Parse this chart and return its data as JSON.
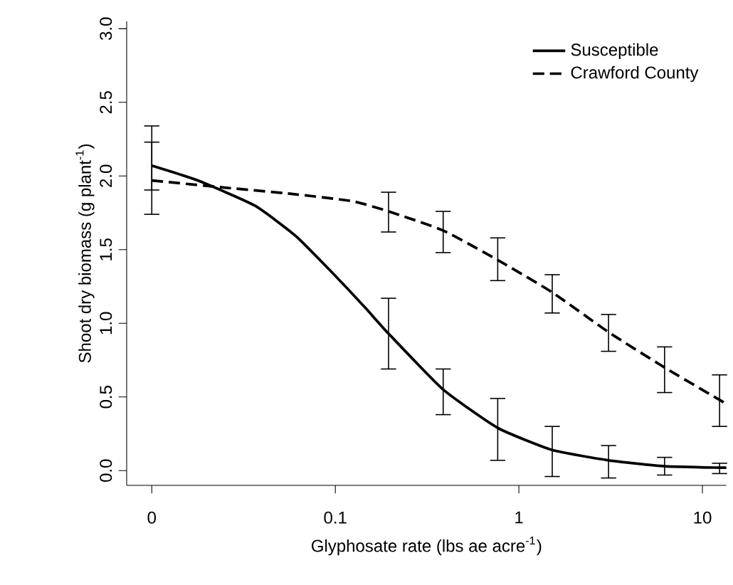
{
  "chart_data": {
    "type": "line",
    "xlabel": "Glyphosate rate (lbs ae acre$^{-1}$)",
    "ylabel": "Shoot dry biomass (g plant$^{-1}$)",
    "log": "x",
    "xlim": [
      0.0073,
      13.5
    ],
    "ylim": [
      -0.1,
      3.05
    ],
    "xticks": [
      {
        "value": 0.01,
        "label": "0"
      },
      0.1,
      1,
      10
    ],
    "yticks": [
      {
        "value": 0,
        "label": "0.0"
      },
      0.5,
      {
        "value": 1,
        "label": "1.0"
      },
      1.5,
      {
        "value": 2,
        "label": "2.0"
      },
      2.5,
      {
        "value": 3,
        "label": "3.0"
      }
    ],
    "legend": "top right",
    "marker": "none",
    "series": [
      {
        "name": "Susceptible",
        "line_style": "solid",
        "color": "#000000",
        "x": [
          0.01,
          0.0178,
          0.0363,
          0.0612,
          0.104,
          0.147,
          0.195,
          0.387,
          0.767,
          1.52,
          3.08,
          6.22,
          12.4,
          13.5
        ],
        "values": [
          2.07,
          1.97,
          1.8,
          1.59,
          1.3,
          1.1,
          0.93,
          0.55,
          0.29,
          0.14,
          0.07,
          0.03,
          0.02,
          0.02
        ],
        "errors": [
          [
            1.74,
            2.34
          ],
          null,
          null,
          null,
          null,
          null,
          [
            0.69,
            1.17
          ],
          [
            0.38,
            0.69
          ],
          [
            0.07,
            0.49
          ],
          [
            -0.04,
            0.3
          ],
          [
            -0.05,
            0.17
          ],
          [
            -0.03,
            0.09
          ],
          [
            -0.02,
            0.05
          ],
          null
        ]
      },
      {
        "name": "Crawford County",
        "line_style": "dashed",
        "color": "#000000",
        "x": [
          0.01,
          0.0255,
          0.0565,
          0.123,
          0.195,
          0.387,
          0.767,
          1.52,
          3.08,
          6.22,
          12.4,
          13.5
        ],
        "values": [
          1.97,
          1.92,
          1.88,
          1.83,
          1.76,
          1.63,
          1.43,
          1.21,
          0.94,
          0.7,
          0.48,
          0.45
        ],
        "errors": [
          [
            1.905,
            2.23
          ],
          null,
          null,
          null,
          [
            1.62,
            1.89
          ],
          [
            1.48,
            1.76
          ],
          [
            1.29,
            1.58
          ],
          [
            1.07,
            1.33
          ],
          [
            0.81,
            1.06
          ],
          [
            0.53,
            0.84
          ],
          [
            0.3,
            0.65
          ],
          null
        ]
      }
    ]
  }
}
